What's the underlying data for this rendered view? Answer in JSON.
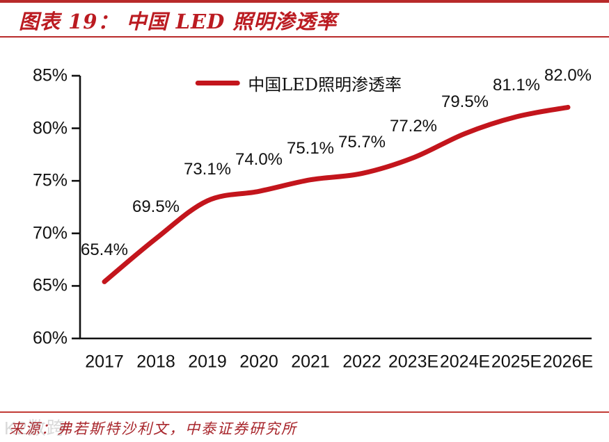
{
  "header": {
    "title": "图表 19： 中国 LED 照明渗透率"
  },
  "legend": {
    "label": "中国LED照明渗透率"
  },
  "footer": {
    "source": "来源：弗若斯特沙利文，中泰证券研究所",
    "watermark": "K2数跨"
  },
  "colors": {
    "accent_red": "#bb1b21",
    "line_red": "#c3151c",
    "axis_black": "#111111"
  },
  "chart_data": {
    "type": "line",
    "title": "中国LED照明渗透率",
    "categories": [
      "2017",
      "2018",
      "2019",
      "2020",
      "2021",
      "2022",
      "2023E",
      "2024E",
      "2025E",
      "2026E"
    ],
    "series": [
      {
        "name": "中国LED照明渗透率",
        "values": [
          65.4,
          69.5,
          73.1,
          74.0,
          75.1,
          75.7,
          77.2,
          79.5,
          81.1,
          82.0
        ]
      }
    ],
    "point_labels": [
      "65.4%",
      "69.5%",
      "73.1%",
      "74.0%",
      "75.1%",
      "75.7%",
      "77.2%",
      "79.5%",
      "81.1%",
      "82.0%"
    ],
    "xlabel": "",
    "ylabel": "",
    "ylim": [
      60,
      85
    ],
    "ytick_step": 5,
    "ytick_labels": [
      "60%",
      "65%",
      "70%",
      "75%",
      "80%",
      "85%"
    ],
    "grid": false,
    "legend_position": "top-center",
    "line_style": "smooth"
  }
}
